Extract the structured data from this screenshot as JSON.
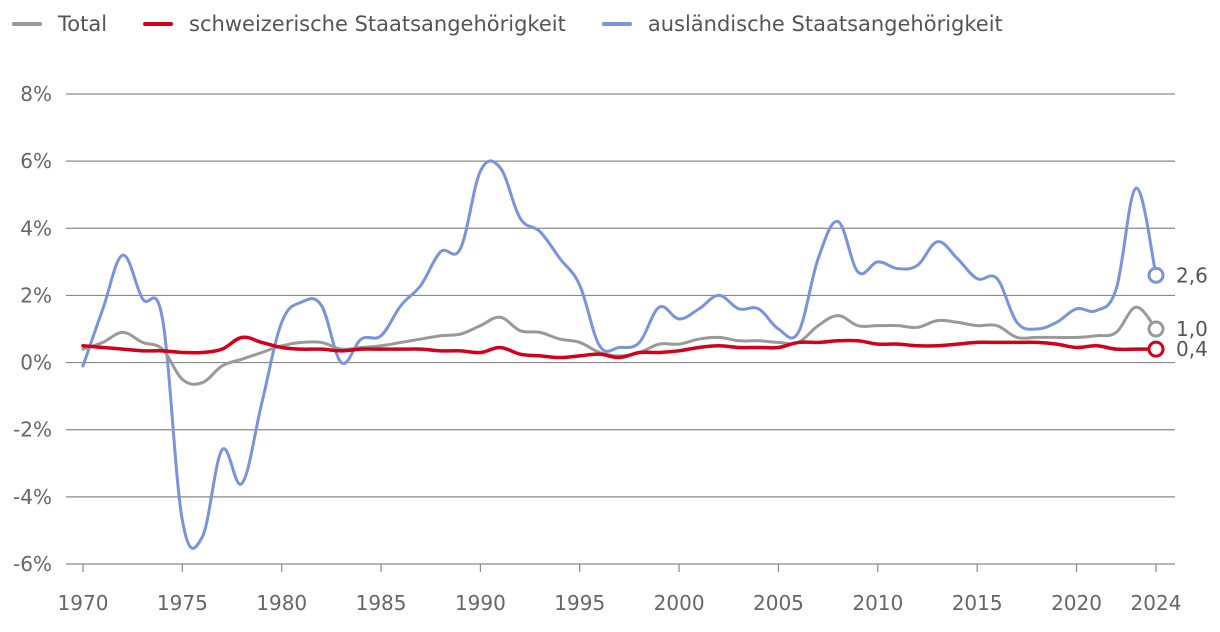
{
  "legend": [
    {
      "label": "Total",
      "color": "#999999"
    },
    {
      "label": "schweizerische Staatsangehörigkeit",
      "color": "#d4001a"
    },
    {
      "label": "ausländische Staatsangehörigkeit",
      "color": "#7b93d8"
    }
  ],
  "chart_data": {
    "type": "line",
    "ylim": [
      -6,
      8
    ],
    "yticks": [
      "8%",
      "6%",
      "4%",
      "2%",
      "0%",
      "-2%",
      "-4%",
      "-6%"
    ],
    "xticks": [
      "1970",
      "1975",
      "1980",
      "1985",
      "1990",
      "1995",
      "2000",
      "2005",
      "2010",
      "2015",
      "2020",
      "2024"
    ],
    "x": [
      1970,
      1971,
      1972,
      1973,
      1974,
      1975,
      1976,
      1977,
      1978,
      1979,
      1980,
      1981,
      1982,
      1983,
      1984,
      1985,
      1986,
      1987,
      1988,
      1989,
      1990,
      1991,
      1992,
      1993,
      1994,
      1995,
      1996,
      1997,
      1998,
      1999,
      2000,
      2001,
      2002,
      2003,
      2004,
      2005,
      2006,
      2007,
      2008,
      2009,
      2010,
      2011,
      2012,
      2013,
      2014,
      2015,
      2016,
      2017,
      2018,
      2019,
      2020,
      2021,
      2022,
      2023,
      2024
    ],
    "series": [
      {
        "name": "Total",
        "color": "#999999",
        "end_label": "1,0",
        "values": [
          0.4,
          0.6,
          0.9,
          0.6,
          0.4,
          -0.5,
          -0.6,
          -0.1,
          0.1,
          0.3,
          0.5,
          0.6,
          0.6,
          0.4,
          0.45,
          0.5,
          0.6,
          0.7,
          0.8,
          0.85,
          1.1,
          1.35,
          0.95,
          0.9,
          0.7,
          0.6,
          0.3,
          0.2,
          0.3,
          0.55,
          0.55,
          0.7,
          0.75,
          0.65,
          0.65,
          0.6,
          0.6,
          1.1,
          1.4,
          1.1,
          1.1,
          1.1,
          1.05,
          1.25,
          1.2,
          1.1,
          1.1,
          0.75,
          0.75,
          0.75,
          0.75,
          0.8,
          0.9,
          1.65,
          1.0
        ]
      },
      {
        "name": "schweizerische Staatsangehörigkeit",
        "color": "#d4001a",
        "end_label": "0,4",
        "values": [
          0.5,
          0.45,
          0.4,
          0.35,
          0.35,
          0.3,
          0.3,
          0.4,
          0.75,
          0.6,
          0.45,
          0.4,
          0.4,
          0.35,
          0.4,
          0.4,
          0.4,
          0.4,
          0.35,
          0.35,
          0.3,
          0.45,
          0.25,
          0.2,
          0.15,
          0.2,
          0.25,
          0.15,
          0.3,
          0.3,
          0.35,
          0.45,
          0.5,
          0.45,
          0.45,
          0.45,
          0.6,
          0.6,
          0.65,
          0.65,
          0.55,
          0.55,
          0.5,
          0.5,
          0.55,
          0.6,
          0.6,
          0.6,
          0.6,
          0.55,
          0.45,
          0.5,
          0.4,
          0.4,
          0.4
        ]
      },
      {
        "name": "ausländische Staatsangehörigkeit",
        "color": "#7b93d8",
        "end_label": "2,6",
        "values": [
          -0.1,
          1.6,
          3.2,
          1.9,
          1.3,
          -4.7,
          -5.2,
          -2.6,
          -3.6,
          -1.2,
          1.2,
          1.8,
          1.7,
          0.0,
          0.7,
          0.8,
          1.7,
          2.3,
          3.3,
          3.4,
          5.7,
          5.8,
          4.3,
          3.9,
          3.1,
          2.3,
          0.5,
          0.45,
          0.6,
          1.65,
          1.3,
          1.6,
          2.0,
          1.6,
          1.6,
          1.0,
          0.9,
          3.1,
          4.2,
          2.7,
          3.0,
          2.8,
          2.9,
          3.6,
          3.1,
          2.5,
          2.5,
          1.2,
          1.0,
          1.2,
          1.6,
          1.55,
          2.2,
          5.2,
          2.6
        ]
      }
    ]
  }
}
